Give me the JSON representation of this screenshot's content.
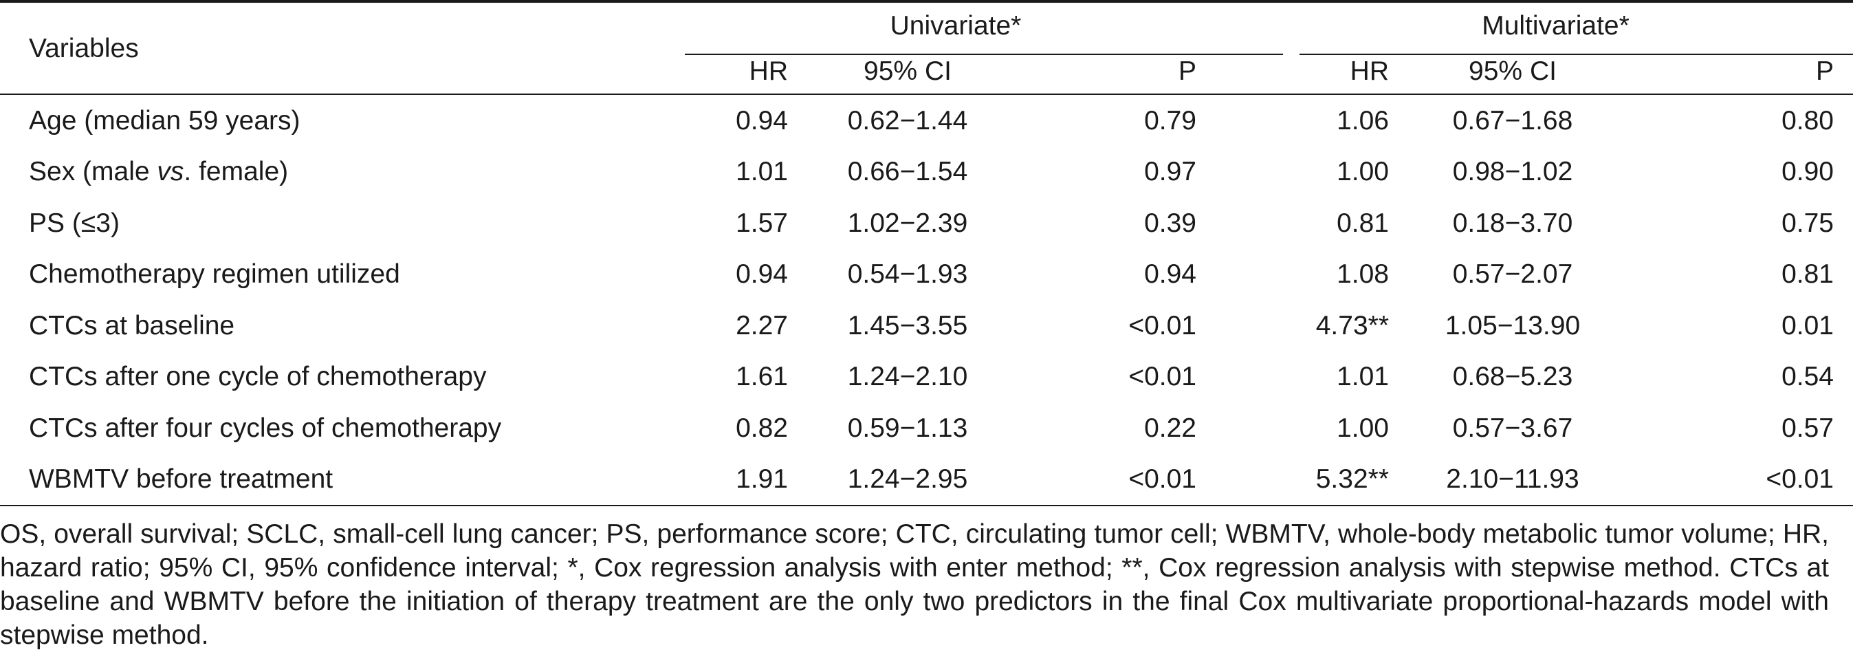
{
  "table": {
    "header": {
      "variables": "Variables",
      "group1": "Univariate*",
      "group2": "Multivariate*",
      "sub_columns": [
        "HR",
        "95% CI",
        "P",
        "HR",
        "95% CI",
        "P"
      ]
    },
    "rows": [
      {
        "variable": "Age (median 59 years)",
        "uni_hr": "0.94",
        "uni_ci": "0.62−1.44",
        "uni_p": "0.79",
        "multi_hr": "1.06",
        "multi_ci": "0.67−1.68",
        "multi_p": "0.80"
      },
      {
        "variable_prefix": "Sex (male ",
        "variable_italic": "vs",
        "variable_suffix": ". female)",
        "uni_hr": "1.01",
        "uni_ci": "0.66−1.54",
        "uni_p": "0.97",
        "multi_hr": "1.00",
        "multi_ci": "0.98−1.02",
        "multi_p": "0.90"
      },
      {
        "variable": "PS (≤3)",
        "uni_hr": "1.57",
        "uni_ci": "1.02−2.39",
        "uni_p": "0.39",
        "multi_hr": "0.81",
        "multi_ci": "0.18−3.70",
        "multi_p": "0.75"
      },
      {
        "variable": "Chemotherapy regimen utilized",
        "uni_hr": "0.94",
        "uni_ci": "0.54−1.93",
        "uni_p": "0.94",
        "multi_hr": "1.08",
        "multi_ci": "0.57−2.07",
        "multi_p": "0.81"
      },
      {
        "variable": "CTCs at baseline",
        "uni_hr": "2.27",
        "uni_ci": "1.45−3.55",
        "uni_p": "<0.01",
        "multi_hr": "4.73**",
        "multi_ci": "1.05−13.90",
        "multi_p": "0.01"
      },
      {
        "variable": "CTCs after one cycle of chemotherapy",
        "uni_hr": "1.61",
        "uni_ci": "1.24−2.10",
        "uni_p": "<0.01",
        "multi_hr": "1.01",
        "multi_ci": "0.68−5.23",
        "multi_p": "0.54"
      },
      {
        "variable": "CTCs after four cycles of chemotherapy",
        "uni_hr": "0.82",
        "uni_ci": "0.59−1.13",
        "uni_p": "0.22",
        "multi_hr": "1.00",
        "multi_ci": "0.57−3.67",
        "multi_p": "0.57"
      },
      {
        "variable": "WBMTV before treatment",
        "uni_hr": "1.91",
        "uni_ci": "1.24−2.95",
        "uni_p": "<0.01",
        "multi_hr": "5.32**",
        "multi_ci": "2.10−11.93",
        "multi_p": "<0.01"
      }
    ]
  },
  "footnote": "OS, overall survival; SCLC, small-cell lung cancer; PS, performance score; CTC, circulating tumor cell; WBMTV, whole-body metabolic tumor volume; HR, hazard ratio; 95% CI, 95% confidence interval; *, Cox regression analysis with enter method; **, Cox regression analysis with stepwise method. CTCs at baseline and WBMTV before the initiation of therapy treatment are the only two predictors in the final Cox multivariate proportional-hazards model with stepwise method."
}
